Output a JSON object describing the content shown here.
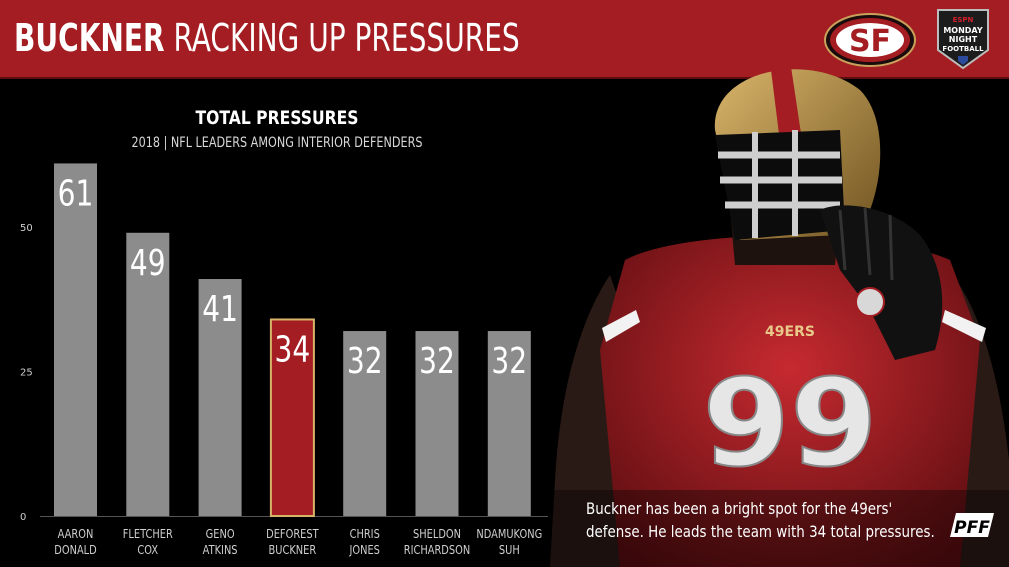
{
  "header": {
    "title_bold": "BUCKNER",
    "title_rest": " RACKING UP PRESSURES",
    "team_logo_text": "SF",
    "broadcast_logo_lines": [
      "ESPN",
      "MONDAY",
      "NIGHT",
      "FOOTBALL"
    ]
  },
  "chart_data": {
    "type": "bar",
    "title": "TOTAL PRESSURES",
    "subtitle": "2018 | NFL LEADERS AMONG INTERIOR DEFENDERS",
    "categories": [
      [
        "AARON",
        "DONALD"
      ],
      [
        "FLETCHER",
        "COX"
      ],
      [
        "GENO",
        "ATKINS"
      ],
      [
        "DEFOREST",
        "BUCKNER"
      ],
      [
        "CHRIS",
        "JONES"
      ],
      [
        "SHELDON",
        "RICHARDSON"
      ],
      [
        "NDAMUKONG",
        "SUH"
      ]
    ],
    "values": [
      61,
      49,
      41,
      34,
      32,
      32,
      32
    ],
    "highlight_index": 3,
    "yticks": [
      0,
      25,
      50
    ],
    "ylim": [
      0,
      61
    ],
    "grid": false,
    "colors": {
      "bar": "#8c8c8c",
      "highlight_bar": "#a31d22",
      "highlight_border": "#d8b46b",
      "value_text": "#ffffff",
      "axis_text": "#cfcfcf"
    }
  },
  "caption": {
    "line1": "Buckner has been a bright spot for the 49ers'",
    "line2": "defense. He leads the team with 34 total pressures."
  },
  "player": {
    "jersey_number": "99",
    "jersey_text": "49ERS"
  },
  "branding": {
    "pff": "PFF"
  },
  "colors": {
    "header_bg": "#a31d22",
    "background": "#000000"
  }
}
